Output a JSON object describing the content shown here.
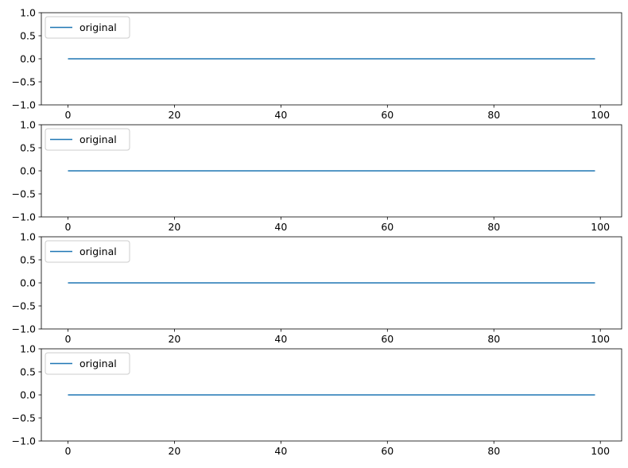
{
  "chart_data": [
    {
      "type": "line",
      "xlim": [
        -5,
        104
      ],
      "ylim": [
        -1,
        1
      ],
      "xticks": [
        0,
        20,
        40,
        60,
        80,
        100
      ],
      "yticks": [
        -1.0,
        -0.5,
        0.0,
        0.5,
        1.0
      ],
      "xtick_labels": [
        "0",
        "20",
        "40",
        "60",
        "80",
        "100"
      ],
      "ytick_labels": [
        "−1.0",
        "−0.5",
        "0.0",
        "0.5",
        "1.0"
      ],
      "grid": false,
      "legend_position": "upper-left",
      "series": [
        {
          "name": "original",
          "color": "#1f77b4",
          "x": [
            0,
            99
          ],
          "y": [
            0,
            0
          ]
        }
      ]
    },
    {
      "type": "line",
      "xlim": [
        -5,
        104
      ],
      "ylim": [
        -1,
        1
      ],
      "xticks": [
        0,
        20,
        40,
        60,
        80,
        100
      ],
      "yticks": [
        -1.0,
        -0.5,
        0.0,
        0.5,
        1.0
      ],
      "xtick_labels": [
        "0",
        "20",
        "40",
        "60",
        "80",
        "100"
      ],
      "ytick_labels": [
        "−1.0",
        "−0.5",
        "0.0",
        "0.5",
        "1.0"
      ],
      "grid": false,
      "legend_position": "upper-left",
      "series": [
        {
          "name": "original",
          "color": "#1f77b4",
          "x": [
            0,
            99
          ],
          "y": [
            0,
            0
          ]
        }
      ]
    },
    {
      "type": "line",
      "xlim": [
        -5,
        104
      ],
      "ylim": [
        -1,
        1
      ],
      "xticks": [
        0,
        20,
        40,
        60,
        80,
        100
      ],
      "yticks": [
        -1.0,
        -0.5,
        0.0,
        0.5,
        1.0
      ],
      "xtick_labels": [
        "0",
        "20",
        "40",
        "60",
        "80",
        "100"
      ],
      "ytick_labels": [
        "−1.0",
        "−0.5",
        "0.0",
        "0.5",
        "1.0"
      ],
      "grid": false,
      "legend_position": "upper-left",
      "series": [
        {
          "name": "original",
          "color": "#1f77b4",
          "x": [
            0,
            99
          ],
          "y": [
            0,
            0
          ]
        }
      ]
    },
    {
      "type": "line",
      "xlim": [
        -5,
        104
      ],
      "ylim": [
        -1,
        1
      ],
      "xticks": [
        0,
        20,
        40,
        60,
        80,
        100
      ],
      "yticks": [
        -1.0,
        -0.5,
        0.0,
        0.5,
        1.0
      ],
      "xtick_labels": [
        "0",
        "20",
        "40",
        "60",
        "80",
        "100"
      ],
      "ytick_labels": [
        "−1.0",
        "−0.5",
        "0.0",
        "0.5",
        "1.0"
      ],
      "grid": false,
      "legend_position": "upper-left",
      "series": [
        {
          "name": "original",
          "color": "#1f77b4",
          "x": [
            0,
            99
          ],
          "y": [
            0,
            0
          ]
        }
      ]
    }
  ]
}
